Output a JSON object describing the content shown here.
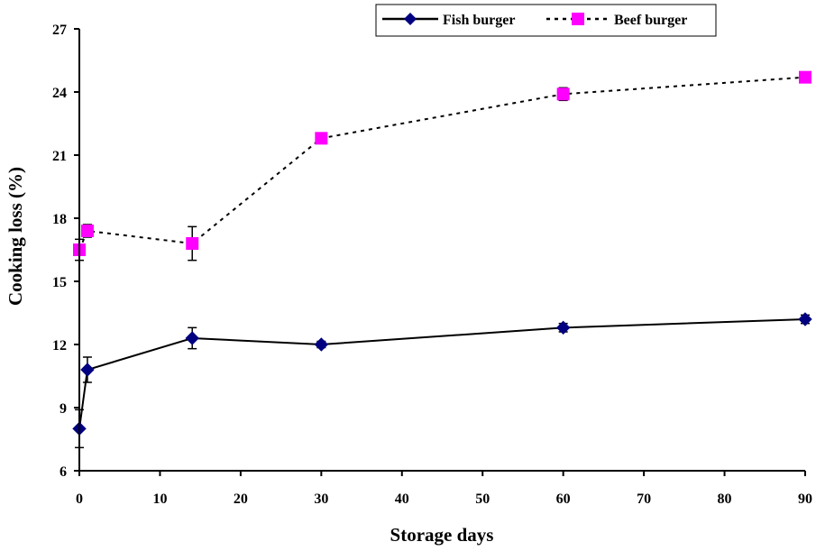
{
  "chart_data": {
    "type": "line",
    "xlabel": "Storage days",
    "ylabel": "Cooking loss (%)",
    "xlim": [
      0,
      90
    ],
    "ylim": [
      6,
      27
    ],
    "x_ticks": [
      "0",
      "10",
      "20",
      "30",
      "40",
      "50",
      "60",
      "70",
      "80",
      "90"
    ],
    "y_ticks": [
      "6",
      "9",
      "12",
      "15",
      "18",
      "21",
      "24",
      "27"
    ],
    "grid": false,
    "legend_position": "top-right",
    "series": [
      {
        "name": "Fish burger",
        "color": "#000080",
        "line_style": "solid",
        "marker": "diamond",
        "x": [
          0,
          1,
          14,
          30,
          60,
          90
        ],
        "y": [
          8.0,
          10.8,
          12.3,
          12.0,
          12.8,
          13.2
        ],
        "error": [
          0.9,
          0.6,
          0.5,
          0.15,
          0.2,
          0.2
        ]
      },
      {
        "name": "Beef burger",
        "color": "#FF00FF",
        "line_style": "dashed",
        "marker": "square",
        "x": [
          0,
          1,
          14,
          30,
          60,
          90
        ],
        "y": [
          16.5,
          17.4,
          16.8,
          21.8,
          23.9,
          24.7
        ],
        "error": [
          0.5,
          0.3,
          0.8,
          0.2,
          0.3,
          0.2
        ]
      }
    ]
  }
}
